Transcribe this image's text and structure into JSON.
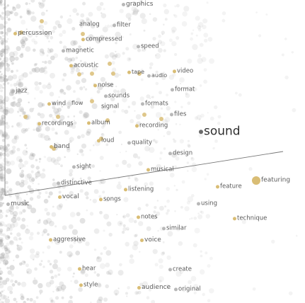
{
  "colors": {
    "gold": "#d9bd75",
    "grey": "#b8b8b8",
    "darkgrey": "#6a6a6a",
    "text": "#5a5a5a",
    "axis": "#6e6e6e"
  },
  "labels": [
    {
      "id": "graphics",
      "text": "graphics",
      "tone": "grey"
    },
    {
      "id": "percussion",
      "text": "percussion",
      "tone": "gold"
    },
    {
      "id": "analog",
      "text": "analog",
      "tone": "none"
    },
    {
      "id": "filter",
      "text": "filter",
      "tone": "grey"
    },
    {
      "id": "compressed",
      "text": "compressed",
      "tone": "gold"
    },
    {
      "id": "magnetic",
      "text": "magnetic",
      "tone": "grey"
    },
    {
      "id": "speed",
      "text": "speed",
      "tone": "grey"
    },
    {
      "id": "acoustic",
      "text": "acoustic",
      "tone": "gold"
    },
    {
      "id": "tape",
      "text": "tape",
      "tone": "gold"
    },
    {
      "id": "audio",
      "text": "audio",
      "tone": "grey"
    },
    {
      "id": "video",
      "text": "video",
      "tone": "gold"
    },
    {
      "id": "noise",
      "text": "noise",
      "tone": "gold"
    },
    {
      "id": "jazz",
      "text": "jazz",
      "tone": "grey"
    },
    {
      "id": "sounds",
      "text": "sounds",
      "tone": "grey"
    },
    {
      "id": "format",
      "text": "format",
      "tone": "grey"
    },
    {
      "id": "wind",
      "text": "wind",
      "tone": "gold"
    },
    {
      "id": "flow",
      "text": "flow",
      "tone": "none"
    },
    {
      "id": "signal",
      "text": "signal",
      "tone": "none"
    },
    {
      "id": "formats",
      "text": "formats",
      "tone": "grey"
    },
    {
      "id": "files",
      "text": "files",
      "tone": "grey"
    },
    {
      "id": "recordings",
      "text": "recordings",
      "tone": "gold"
    },
    {
      "id": "album",
      "text": "album",
      "tone": "gold"
    },
    {
      "id": "recording",
      "text": "recording",
      "tone": "gold"
    },
    {
      "id": "sound",
      "text": "sound",
      "tone": "dark"
    },
    {
      "id": "band",
      "text": "band",
      "tone": "gold"
    },
    {
      "id": "loud",
      "text": "loud",
      "tone": "gold"
    },
    {
      "id": "quality",
      "text": "quality",
      "tone": "grey"
    },
    {
      "id": "design",
      "text": "design",
      "tone": "grey"
    },
    {
      "id": "sight",
      "text": "sight",
      "tone": "grey"
    },
    {
      "id": "musical",
      "text": "musical",
      "tone": "gold"
    },
    {
      "id": "distinctive",
      "text": "distinctive",
      "tone": "grey"
    },
    {
      "id": "featuring",
      "text": "featuring",
      "tone": "gold"
    },
    {
      "id": "feature",
      "text": "feature",
      "tone": "gold"
    },
    {
      "id": "listening",
      "text": "listening",
      "tone": "gold"
    },
    {
      "id": "vocal",
      "text": "vocal",
      "tone": "gold"
    },
    {
      "id": "songs",
      "text": "songs",
      "tone": "gold"
    },
    {
      "id": "music",
      "text": "music",
      "tone": "grey"
    },
    {
      "id": "using",
      "text": "using",
      "tone": "grey"
    },
    {
      "id": "technique",
      "text": "technique",
      "tone": "gold"
    },
    {
      "id": "notes",
      "text": "notes",
      "tone": "gold"
    },
    {
      "id": "similar",
      "text": "similar",
      "tone": "grey"
    },
    {
      "id": "aggressive",
      "text": "aggressive",
      "tone": "gold"
    },
    {
      "id": "voice",
      "text": "voice",
      "tone": "gold"
    },
    {
      "id": "hear",
      "text": "hear",
      "tone": "gold"
    },
    {
      "id": "create",
      "text": "create",
      "tone": "grey"
    },
    {
      "id": "style",
      "text": "style",
      "tone": "gold"
    },
    {
      "id": "audience",
      "text": "audience",
      "tone": "gold"
    },
    {
      "id": "original",
      "text": "original",
      "tone": "grey"
    }
  ]
}
